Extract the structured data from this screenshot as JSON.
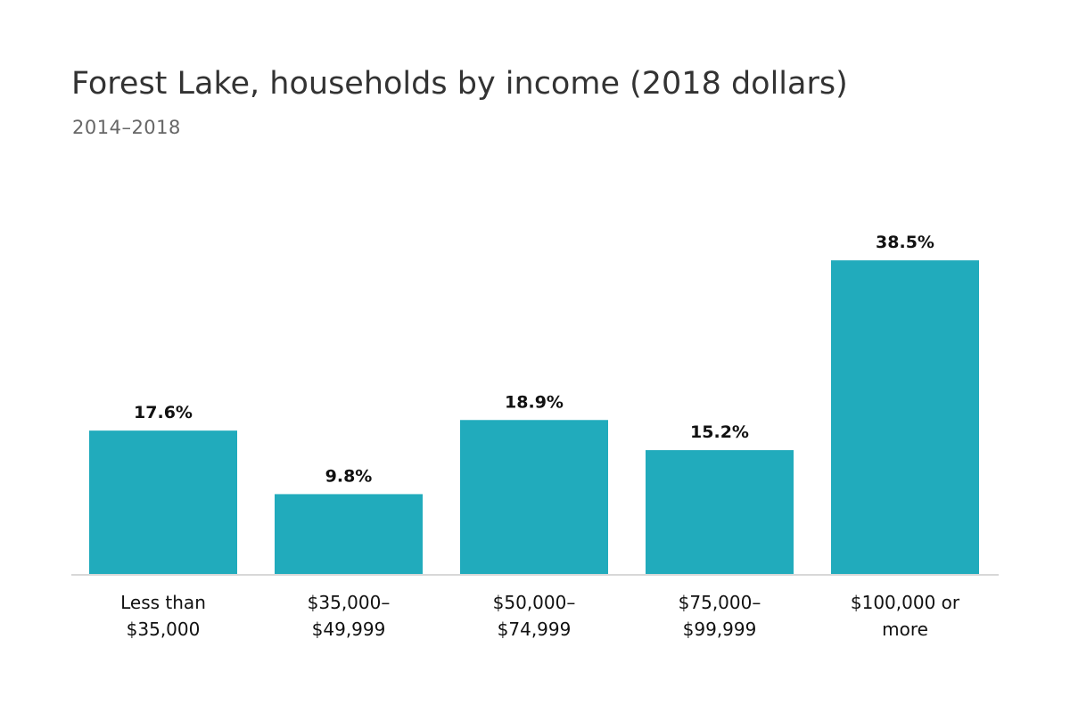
{
  "chart_data": {
    "type": "bar",
    "title": "Forest Lake, households by income (2018 dollars)",
    "subtitle": "2014–2018",
    "categories": [
      [
        "Less than",
        "$35,000"
      ],
      [
        "$35,000–",
        "$49,999"
      ],
      [
        "$50,000–",
        "$74,999"
      ],
      [
        "$75,000–",
        "$99,999"
      ],
      [
        "$100,000 or",
        "more"
      ]
    ],
    "values": [
      17.6,
      9.8,
      18.9,
      15.2,
      38.5
    ],
    "value_labels": [
      "17.6%",
      "9.8%",
      "18.9%",
      "15.2%",
      "38.5%"
    ],
    "ylim": [
      0,
      40
    ],
    "grid": false,
    "legend": "none"
  },
  "colors": {
    "bar": "#21abbc",
    "axis": "#cccccc"
  }
}
